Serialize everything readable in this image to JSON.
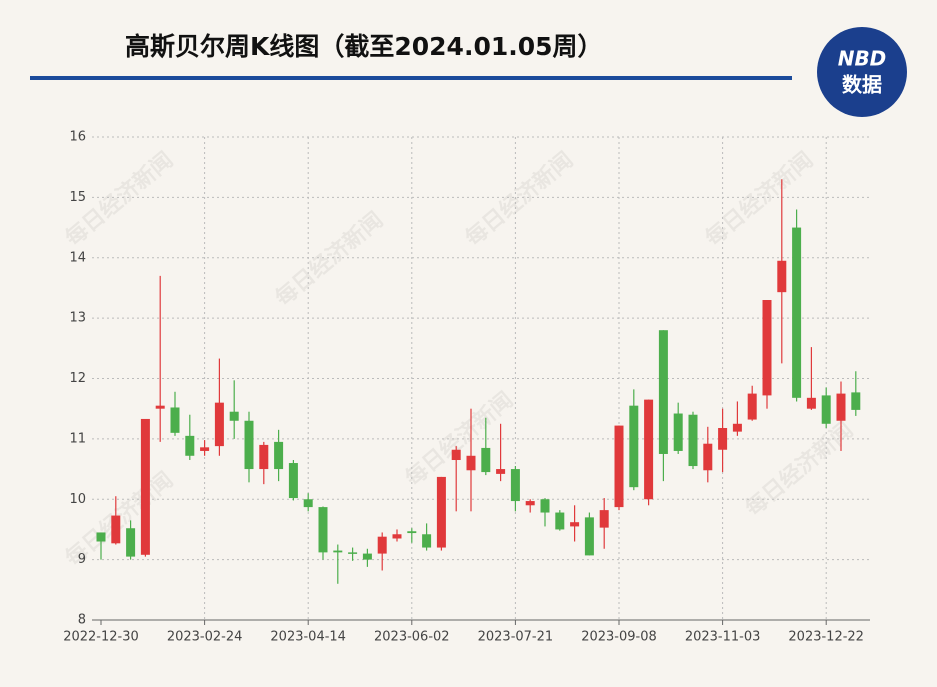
{
  "chart_data": {
    "type": "candlestick",
    "title": "高斯贝尔周K线图（截至2024.01.05周）",
    "logo": {
      "top": "NBD",
      "bottom": "数据"
    },
    "watermark": "每日经济新闻",
    "categories": [
      "2022-12-30",
      null,
      null,
      null,
      null,
      null,
      null,
      "2023-02-24",
      null,
      null,
      null,
      null,
      null,
      null,
      "2023-04-14",
      null,
      null,
      null,
      null,
      null,
      null,
      "2023-06-02",
      null,
      null,
      null,
      null,
      null,
      null,
      "2023-07-21",
      null,
      null,
      null,
      null,
      null,
      null,
      "2023-09-08",
      null,
      null,
      null,
      null,
      null,
      null,
      "2023-11-03",
      null,
      null,
      null,
      null,
      null,
      null,
      "2023-12-22",
      null,
      null
    ],
    "open": [
      9.45,
      9.27,
      9.52,
      9.08,
      11.5,
      11.52,
      11.05,
      10.8,
      10.88,
      11.45,
      11.3,
      10.5,
      10.95,
      10.6,
      10.0,
      9.87,
      9.15,
      9.12,
      9.1,
      9.1,
      9.35,
      9.47,
      9.42,
      9.2,
      10.65,
      10.48,
      10.85,
      10.42,
      10.5,
      9.9,
      10.0,
      9.78,
      9.55,
      9.7,
      9.53,
      9.87,
      11.55,
      10.0,
      12.8,
      11.42,
      11.4,
      10.48,
      10.82,
      11.12,
      11.32,
      11.72,
      13.43,
      14.5,
      11.5,
      11.72,
      11.3,
      11.77
    ],
    "close": [
      9.3,
      9.73,
      9.05,
      11.33,
      11.55,
      11.1,
      10.72,
      10.86,
      11.6,
      11.3,
      10.5,
      10.9,
      10.5,
      10.02,
      9.87,
      9.12,
      9.12,
      9.1,
      9.0,
      9.38,
      9.42,
      9.44,
      9.2,
      10.37,
      10.82,
      10.72,
      10.45,
      10.5,
      9.97,
      9.97,
      9.78,
      9.5,
      9.62,
      9.07,
      9.82,
      11.22,
      10.2,
      11.65,
      10.75,
      10.8,
      10.55,
      10.92,
      11.18,
      11.25,
      11.75,
      13.3,
      13.95,
      11.68,
      11.68,
      11.25,
      11.75,
      11.48
    ],
    "high": [
      9.45,
      10.05,
      9.65,
      11.33,
      13.7,
      11.78,
      11.4,
      10.98,
      12.33,
      11.97,
      11.45,
      10.95,
      11.15,
      10.65,
      10.1,
      9.88,
      9.25,
      9.2,
      9.18,
      9.45,
      9.5,
      9.52,
      9.6,
      10.37,
      10.88,
      11.5,
      11.35,
      11.25,
      10.55,
      10.0,
      10.02,
      9.82,
      9.9,
      9.78,
      10.02,
      11.22,
      11.82,
      11.65,
      12.8,
      11.6,
      11.45,
      11.2,
      11.5,
      11.62,
      11.88,
      13.3,
      15.3,
      14.8,
      12.52,
      11.85,
      11.95,
      12.12
    ],
    "low": [
      9.0,
      9.25,
      9.0,
      9.05,
      10.95,
      11.05,
      10.65,
      10.72,
      10.72,
      11.0,
      10.28,
      10.25,
      10.3,
      9.98,
      9.8,
      9.0,
      8.6,
      8.98,
      8.88,
      8.82,
      9.3,
      9.28,
      9.15,
      9.15,
      9.8,
      9.8,
      10.4,
      10.3,
      9.8,
      9.78,
      9.55,
      9.48,
      9.3,
      9.07,
      9.18,
      9.82,
      10.15,
      9.9,
      10.3,
      10.75,
      10.5,
      10.28,
      10.45,
      11.05,
      11.3,
      11.5,
      12.25,
      11.62,
      11.48,
      11.18,
      10.8,
      11.38
    ],
    "up_color": "#e0393b",
    "down_color": "#4cae4c",
    "ylim": [
      8,
      16
    ],
    "yticks": [
      8,
      9,
      10,
      11,
      12,
      13,
      14,
      15,
      16
    ],
    "grid": true
  }
}
